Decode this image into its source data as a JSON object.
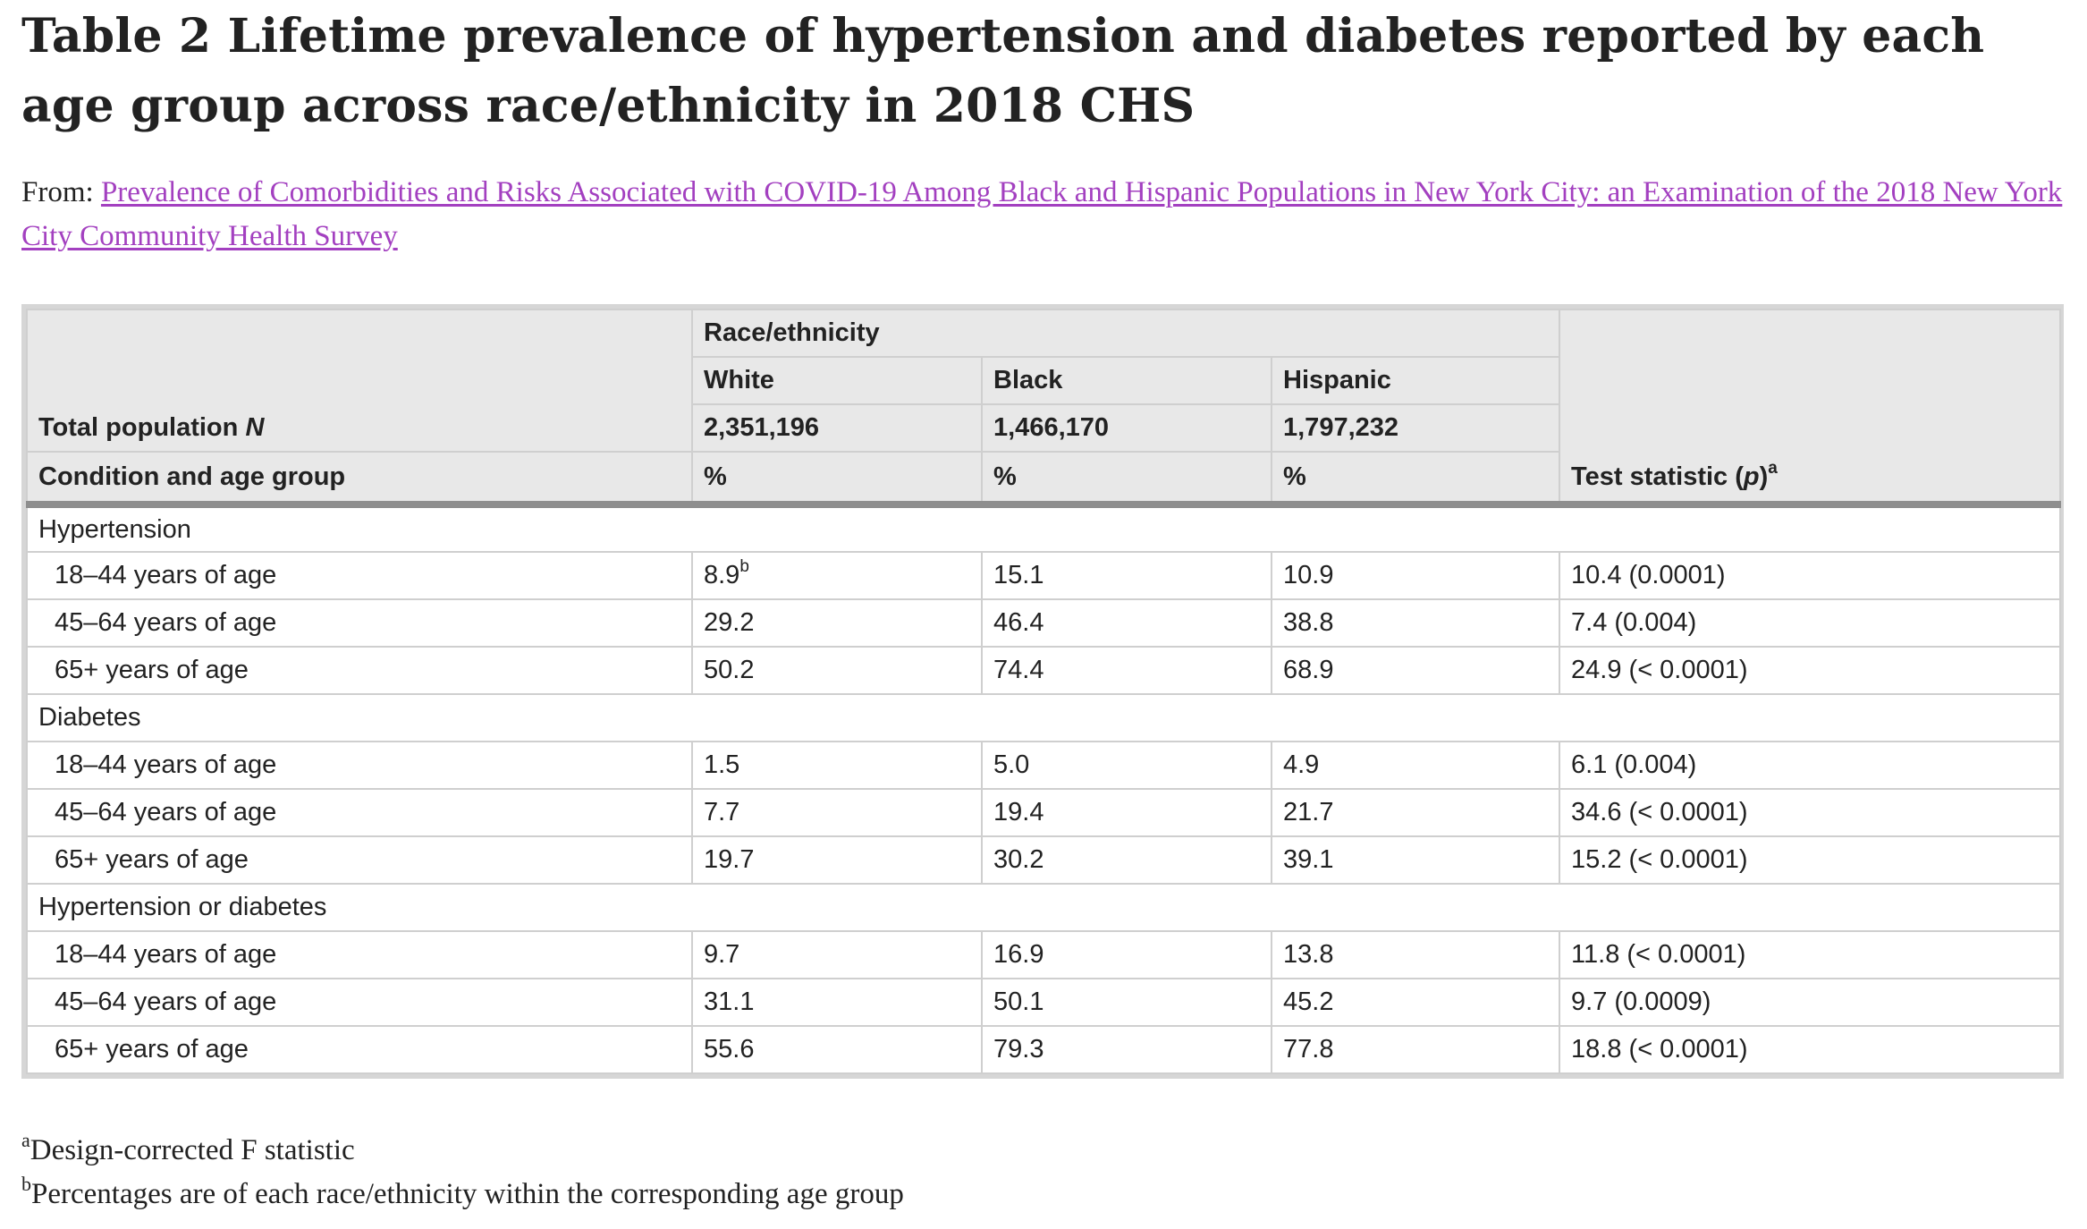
{
  "title": "Table 2 Lifetime prevalence of hypertension and diabetes reported by each age group across race/ethnicity in 2018 CHS",
  "from_label": "From:",
  "from_link": "Prevalence of Comorbidities and Risks Associated with COVID-19 Among Black and Hispanic Populations in New York City: an Examination of the 2018 New York City Community Health Survey",
  "table": {
    "race_header": "Race/ethnicity",
    "columns": [
      "White",
      "Black",
      "Hispanic"
    ],
    "total_label": "Total population",
    "total_label_n": "N",
    "totals": [
      "2,351,196",
      "1,466,170",
      "1,797,232"
    ],
    "condition_header": "Condition and age group",
    "percent": "%",
    "test_header": "Test statistic (",
    "test_header_p": "p",
    "test_header_close": ")",
    "test_header_sup": "a",
    "groups": [
      {
        "name": "Hypertension",
        "rows": [
          {
            "age": "18–44 years of age",
            "white": "8.9",
            "white_sup": "b",
            "black": "15.1",
            "hispanic": "10.9",
            "test": "10.4 (0.0001)"
          },
          {
            "age": "45–64 years of age",
            "white": "29.2",
            "black": "46.4",
            "hispanic": "38.8",
            "test": "7.4 (0.004)"
          },
          {
            "age": "65+ years of age",
            "white": "50.2",
            "black": "74.4",
            "hispanic": "68.9",
            "test": "24.9 (< 0.0001)"
          }
        ]
      },
      {
        "name": "Diabetes",
        "rows": [
          {
            "age": "18–44 years of age",
            "white": "1.5",
            "black": "5.0",
            "hispanic": "4.9",
            "test": "6.1 (0.004)"
          },
          {
            "age": "45–64 years of age",
            "white": "7.7",
            "black": "19.4",
            "hispanic": "21.7",
            "test": "34.6 (< 0.0001)"
          },
          {
            "age": "65+ years of age",
            "white": "19.7",
            "black": "30.2",
            "hispanic": "39.1",
            "test": "15.2 (< 0.0001)"
          }
        ]
      },
      {
        "name": "Hypertension or diabetes",
        "rows": [
          {
            "age": "18–44 years of age",
            "white": "9.7",
            "black": "16.9",
            "hispanic": "13.8",
            "test": "11.8 (< 0.0001)"
          },
          {
            "age": "45–64 years of age",
            "white": "31.1",
            "black": "50.1",
            "hispanic": "45.2",
            "test": "9.7 (0.0009)"
          },
          {
            "age": "65+ years of age",
            "white": "55.6",
            "black": "79.3",
            "hispanic": "77.8",
            "test": "18.8 (< 0.0001)"
          }
        ]
      }
    ]
  },
  "footnotes": [
    {
      "sup": "a",
      "text": "Design-corrected F statistic"
    },
    {
      "sup": "b",
      "text": "Percentages are of each race/ethnicity within the corresponding age group"
    }
  ],
  "colors": {
    "link": "#a340c0",
    "header_bg": "#e8e8e8",
    "text": "#222222"
  }
}
